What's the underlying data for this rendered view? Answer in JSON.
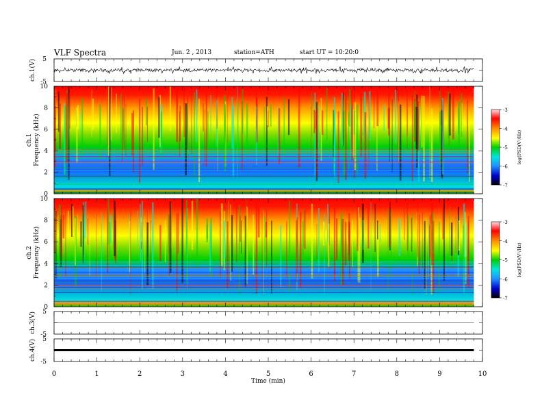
{
  "header": {
    "title": "VLF Spectra",
    "date": "Jun. 2 , 2013",
    "station": "station=ATH",
    "start": "start UT = 10:20:0"
  },
  "chart_data": [
    {
      "type": "line",
      "panel": "waveform-ch1",
      "ylabel": "ch.1(V)",
      "ylim": [
        -5,
        5
      ],
      "yticks": [
        "5",
        "-5"
      ],
      "xlim": [
        0,
        10
      ],
      "x_end": 9.8,
      "series": [
        {
          "values_note_range": [
            -1.5,
            1.5
          ],
          "baseline": 0
        }
      ]
    },
    {
      "type": "heatmap",
      "panel": "spectrogram-ch1",
      "ylabel_top": "ch.1",
      "ylabel": "Frequency (kHz)",
      "ylim": [
        0,
        10
      ],
      "yticks": [
        "0",
        "2",
        "4",
        "6",
        "8",
        "10"
      ],
      "xlim": [
        0,
        10
      ],
      "x_end": 9.8,
      "colorbar": {
        "label": "log(PSD(V²/Hz)",
        "range": [
          -7,
          -3
        ],
        "ticks": [
          "-3",
          "-4",
          "-5",
          "-6",
          "-7"
        ]
      }
    },
    {
      "type": "heatmap",
      "panel": "spectrogram-ch2",
      "ylabel_top": "ch.2",
      "ylabel": "Frequency (kHz)",
      "ylim": [
        0,
        10
      ],
      "yticks": [
        "0",
        "2",
        "4",
        "6",
        "8",
        "10"
      ],
      "xlim": [
        0,
        10
      ],
      "x_end": 9.8,
      "colorbar": {
        "label": "log(PSD(V²/Hz)",
        "range": [
          -7,
          -3
        ],
        "ticks": [
          "-3",
          "-4",
          "-5",
          "-6",
          "-7"
        ]
      }
    },
    {
      "type": "line",
      "panel": "waveform-ch3",
      "ylabel": "ch.3(V)",
      "ylim": [
        -5,
        5
      ],
      "yticks": [
        "5",
        "-5"
      ],
      "xlim": [
        0,
        10
      ],
      "series": [
        {
          "baseline": 0
        }
      ]
    },
    {
      "type": "line",
      "panel": "waveform-ch4",
      "ylabel": "ch.4(V)",
      "ylim": [
        -5,
        5
      ],
      "yticks": [
        "5",
        "-5"
      ],
      "xlim": [
        0,
        10
      ],
      "xlabel": "Time (min)",
      "xticks": [
        "0",
        "1",
        "2",
        "3",
        "4",
        "5",
        "6",
        "7",
        "8",
        "9",
        "10"
      ],
      "series": [
        {
          "baseline": 0
        }
      ]
    }
  ],
  "colors": {
    "axis": "#000000",
    "psd_scale": [
      "#000000",
      "#0000d0",
      "#1e90ff",
      "#00e5e5",
      "#00d000",
      "#ffff00",
      "#ff8c00",
      "#ff0000",
      "#ffd0d0"
    ]
  }
}
